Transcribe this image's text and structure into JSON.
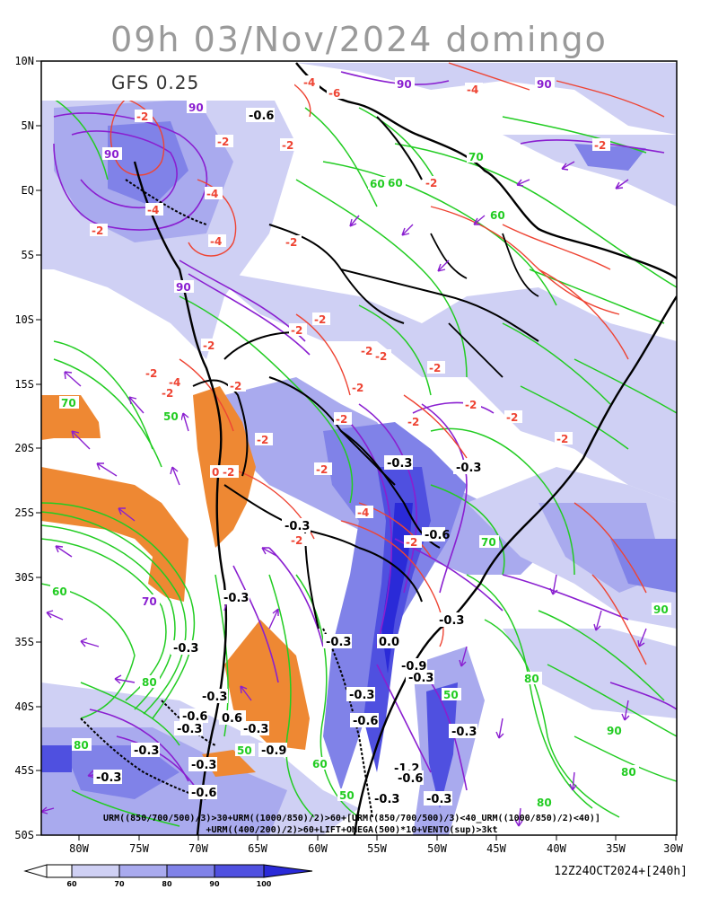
{
  "title": "09h 03/Nov/2024 domingo",
  "model_label": "GFS 0.25",
  "latitude_ticks": [
    "10N",
    "5N",
    "EQ",
    "5S",
    "10S",
    "15S",
    "20S",
    "25S",
    "30S",
    "35S",
    "40S",
    "45S",
    "50S"
  ],
  "longitude_ticks": [
    "80W",
    "75W",
    "70W",
    "65W",
    "60W",
    "55W",
    "50W",
    "45W",
    "40W",
    "35W",
    "30W"
  ],
  "legend_line_1": "URM((850/700/500)/3)>30+URM((1000/850)/2)>60+[URM((850/700/500)/3)<40_URM((1000/850)/2)<40)]",
  "legend_line_2": "+URM((400/200)/2)>60+LIFT+OMEGA(500)*10+VENTO(sup)>3kt",
  "colorbar_ticks": [
    "60",
    "70",
    "80",
    "90",
    "100"
  ],
  "colorbar_colors": [
    "#ffffff",
    "#cfd0f4",
    "#a9aaee",
    "#8082e8",
    "#4f50e0",
    "#2a2ad8"
  ],
  "run_stamp": "12Z24OCT2024+[240h]",
  "colors": {
    "humidity_contour": "#22cc22",
    "upper_humidity_contour": "#8a1fd0",
    "lift_contour": "#ee4433",
    "wind_vector": "#8a1fd0",
    "dry_area": "#ee8833",
    "coastline": "#000000"
  },
  "contour_value_labels": {
    "omega": [
      "-0.3",
      "-0.6",
      "-0.9",
      "-1.2",
      "0.0",
      "0.6"
    ],
    "lift": [
      "-2",
      "-4",
      "-6",
      "0"
    ],
    "humidity": [
      "50",
      "60",
      "70",
      "80",
      "90"
    ]
  }
}
